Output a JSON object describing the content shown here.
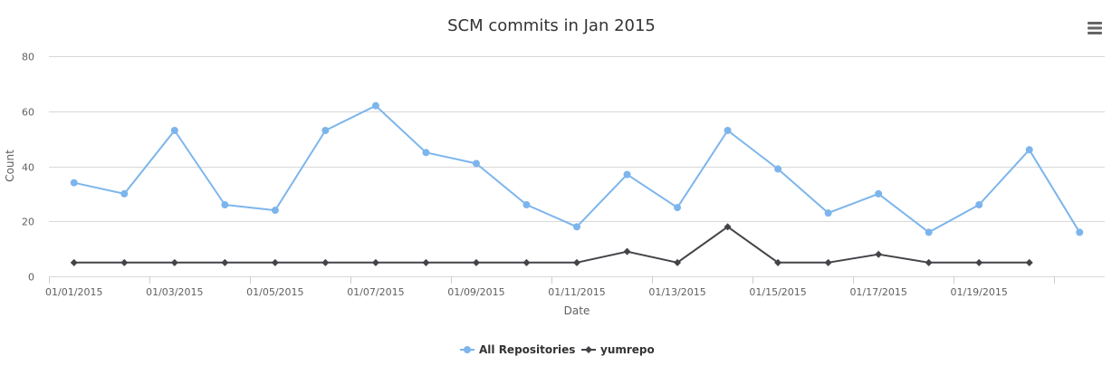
{
  "chart_data": {
    "type": "line",
    "title": "SCM commits in Jan 2015",
    "xlabel": "Date",
    "ylabel": "Count",
    "x": [
      "01/01/2015",
      "01/02/2015",
      "01/03/2015",
      "01/04/2015",
      "01/05/2015",
      "01/06/2015",
      "01/07/2015",
      "01/08/2015",
      "01/09/2015",
      "01/10/2015",
      "01/11/2015",
      "01/12/2015",
      "01/13/2015",
      "01/14/2015",
      "01/15/2015",
      "01/16/2015",
      "01/17/2015",
      "01/18/2015",
      "01/19/2015",
      "01/20/2015",
      "01/21/2015"
    ],
    "x_tick_labels": [
      "01/01/2015",
      "01/03/2015",
      "01/05/2015",
      "01/07/2015",
      "01/09/2015",
      "01/11/2015",
      "01/13/2015",
      "01/15/2015",
      "01/17/2015",
      "01/19/2015"
    ],
    "ylim": [
      0,
      80
    ],
    "y_ticks": [
      0,
      20,
      40,
      60,
      80
    ],
    "grid": true,
    "legend": "bottom-center",
    "series": [
      {
        "name": "All Repositories",
        "color": "#7cb5ec",
        "marker": "circle",
        "values": [
          34,
          30,
          53,
          26,
          24,
          53,
          62,
          45,
          41,
          26,
          18,
          37,
          25,
          53,
          39,
          23,
          30,
          16,
          26,
          46,
          16
        ]
      },
      {
        "name": "yumrepo",
        "color": "#434348",
        "marker": "diamond",
        "values": [
          5,
          5,
          5,
          5,
          5,
          5,
          5,
          5,
          5,
          5,
          5,
          9,
          5,
          18,
          5,
          5,
          8,
          5,
          5,
          5,
          null
        ]
      }
    ]
  },
  "toolbar": {
    "menu_icon": "hamburger-menu-icon"
  }
}
